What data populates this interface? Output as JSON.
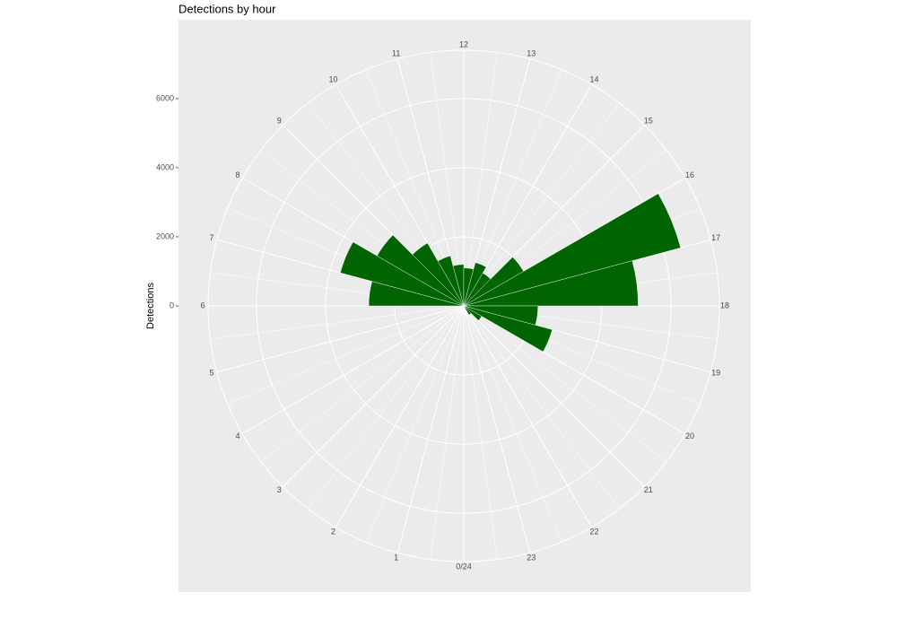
{
  "chart_data": {
    "type": "polar-histogram",
    "title": "Detections by hour",
    "y_label": "Detections",
    "bins": [
      0,
      1,
      2,
      3,
      4,
      5,
      6,
      7,
      8,
      9,
      10,
      11,
      12,
      13,
      14,
      15,
      16,
      17,
      18,
      19,
      20,
      21,
      22,
      23,
      24
    ],
    "values": [
      0,
      0,
      0,
      0,
      0,
      0,
      2750,
      3700,
      2900,
      2100,
      1500,
      1200,
      1100,
      1300,
      1100,
      2000,
      6500,
      5050,
      2150,
      2650,
      600,
      300,
      0,
      0
    ],
    "color": "#006400",
    "xlim": [
      0,
      24
    ],
    "xticks": [
      {
        "value": 0,
        "label": "0/24"
      },
      1,
      2,
      3,
      4,
      5,
      6,
      7,
      8,
      9,
      10,
      11,
      12,
      13,
      14,
      15,
      16,
      17,
      18,
      19,
      20,
      21,
      22,
      23
    ],
    "ylim": [
      0,
      7400
    ],
    "yticks": [
      0,
      2000,
      4000,
      6000
    ],
    "grid": true
  }
}
